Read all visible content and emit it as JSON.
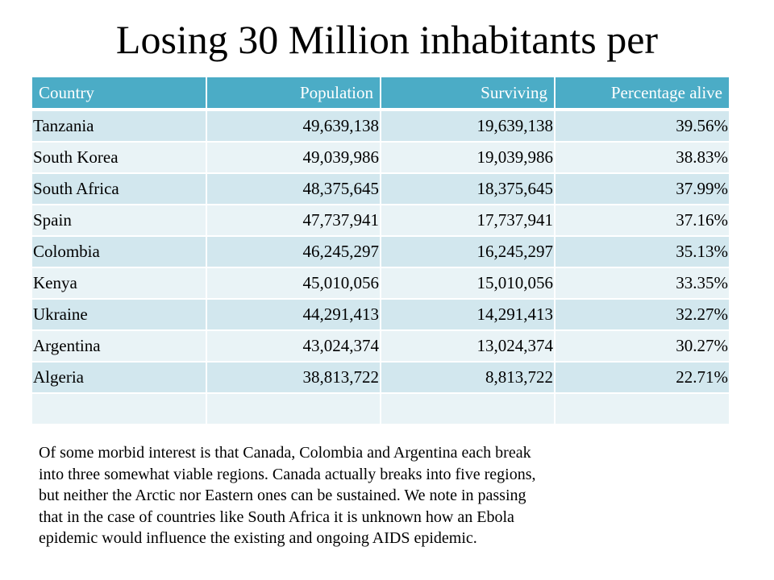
{
  "slide": {
    "title": "Losing 30 Million inhabitants per"
  },
  "table": {
    "headers": [
      "Country",
      "Population",
      "Surviving",
      "Percentage alive"
    ],
    "rows": [
      [
        "Tanzania",
        "49,639,138",
        "19,639,138",
        "39.56%"
      ],
      [
        "South Korea",
        "49,039,986",
        "19,039,986",
        "38.83%"
      ],
      [
        "South Africa",
        "48,375,645",
        "18,375,645",
        "37.99%"
      ],
      [
        "Spain",
        "47,737,941",
        "17,737,941",
        "37.16%"
      ],
      [
        "Colombia",
        "46,245,297",
        "16,245,297",
        "35.13%"
      ],
      [
        "Kenya",
        "45,010,056",
        "15,010,056",
        "33.35%"
      ],
      [
        "Ukraine",
        "44,291,413",
        "14,291,413",
        "32.27%"
      ],
      [
        "Argentina",
        "43,024,374",
        "13,024,374",
        "30.27%"
      ],
      [
        "Algeria",
        "38,813,722",
        "8,813,722",
        "22.71%"
      ],
      [
        "",
        "",
        "",
        ""
      ]
    ]
  },
  "notes": {
    "lines": [
      "Of some morbid interest is that Canada, Colombia and Argentina each break",
      "into three somewhat viable regions. Canada actually breaks into five regions,",
      "but neither the Arctic nor Eastern ones can be sustained. We note in passing",
      "that in the case of countries like South Africa it is unknown how an Ebola",
      "epidemic would influence the existing and ongoing AIDS epidemic."
    ]
  },
  "colors": {
    "header_bg": "#4bacc6",
    "row_odd_bg": "#d2e7ee",
    "row_even_bg": "#e9f3f6"
  }
}
